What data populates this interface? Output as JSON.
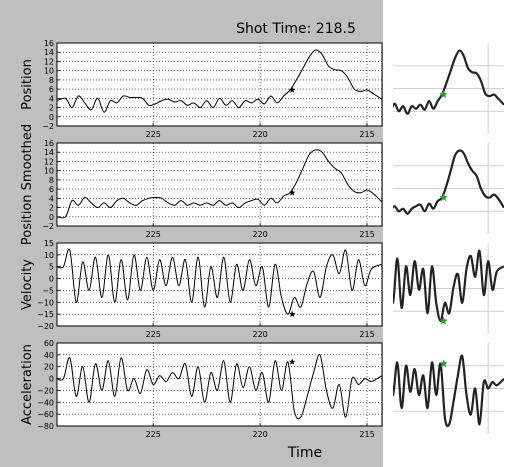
{
  "figure_title": "Shot Time: 218.5",
  "xlabel": "Time",
  "chart_data": [
    {
      "type": "line",
      "ylabel": "Position",
      "xlim": [
        229.5,
        214.3
      ],
      "ylim": [
        -2,
        16
      ],
      "yticks": [
        -2,
        0,
        2,
        4,
        6,
        8,
        10,
        12,
        14,
        16
      ],
      "xticks": [
        225,
        220,
        215
      ],
      "grid": true,
      "marker": {
        "x": 218.5,
        "y": 5.8
      },
      "x": [
        229.5,
        229.1,
        228.8,
        228.5,
        228.2,
        227.9,
        227.6,
        227.3,
        227.0,
        226.7,
        226.4,
        226.1,
        225.8,
        225.5,
        225.2,
        224.9,
        224.6,
        224.3,
        224.0,
        223.7,
        223.4,
        223.1,
        222.8,
        222.5,
        222.2,
        221.9,
        221.6,
        221.3,
        221.0,
        220.7,
        220.4,
        220.1,
        219.8,
        219.5,
        219.2,
        218.9,
        218.6,
        218.3,
        218.0,
        217.7,
        217.4,
        217.1,
        216.8,
        216.5,
        216.2,
        215.9,
        215.6,
        215.3,
        215.0,
        214.7,
        214.3
      ],
      "y": [
        3.5,
        4.0,
        2.0,
        4.5,
        3.0,
        1.5,
        4.0,
        1.0,
        3.5,
        3.0,
        4.5,
        4.2,
        4.2,
        4.0,
        2.5,
        2.8,
        3.5,
        3.8,
        3.2,
        3.5,
        2.5,
        3.0,
        2.0,
        3.5,
        2.0,
        4.0,
        2.5,
        3.5,
        2.0,
        3.5,
        3.0,
        3.8,
        2.8,
        4.5,
        3.0,
        4.5,
        5.8,
        8.0,
        10.5,
        13.0,
        14.5,
        13.5,
        11.0,
        10.2,
        10.0,
        8.5,
        6.0,
        5.5,
        5.8,
        5.0,
        3.8
      ]
    },
    {
      "type": "line",
      "ylabel": "Position Smoothed",
      "xlim": [
        229.5,
        214.3
      ],
      "ylim": [
        -2,
        16
      ],
      "yticks": [
        -2,
        0,
        2,
        4,
        6,
        8,
        10,
        12,
        14,
        16
      ],
      "xticks": [
        225,
        220,
        215
      ],
      "grid": true,
      "marker": {
        "x": 218.5,
        "y": 5.2
      },
      "x": [
        229.5,
        229.1,
        228.8,
        228.5,
        228.2,
        227.9,
        227.6,
        227.3,
        227.0,
        226.7,
        226.4,
        226.1,
        225.8,
        225.5,
        225.2,
        224.9,
        224.6,
        224.3,
        224.0,
        223.7,
        223.4,
        223.1,
        222.8,
        222.5,
        222.2,
        221.9,
        221.6,
        221.3,
        221.0,
        220.7,
        220.4,
        220.1,
        219.8,
        219.5,
        219.2,
        218.9,
        218.6,
        218.3,
        218.0,
        217.7,
        217.4,
        217.1,
        216.8,
        216.5,
        216.2,
        215.9,
        215.6,
        215.3,
        215.0,
        214.7,
        214.3
      ],
      "y": [
        0.0,
        0.0,
        3.5,
        2.5,
        4.2,
        3.0,
        2.0,
        3.0,
        2.0,
        3.5,
        4.0,
        3.0,
        2.5,
        3.5,
        4.0,
        4.2,
        4.0,
        3.0,
        2.5,
        3.5,
        2.5,
        3.0,
        2.5,
        3.0,
        2.5,
        3.5,
        2.5,
        3.0,
        2.0,
        3.0,
        3.5,
        3.8,
        2.5,
        4.0,
        3.0,
        4.5,
        5.2,
        7.5,
        10.5,
        13.5,
        14.5,
        14.0,
        12.0,
        10.5,
        9.5,
        7.0,
        5.5,
        5.2,
        5.8,
        5.0,
        3.2
      ]
    },
    {
      "type": "line",
      "ylabel": "Velocity",
      "xlim": [
        229.5,
        214.3
      ],
      "ylim": [
        -20,
        15
      ],
      "yticks": [
        -20,
        -15,
        -10,
        -5,
        0,
        5,
        10,
        15
      ],
      "xticks": [
        225,
        220,
        215
      ],
      "grid": true,
      "marker": {
        "x": 218.5,
        "y": -15
      },
      "x": [
        229.5,
        229.2,
        228.9,
        228.6,
        228.3,
        228.0,
        227.7,
        227.4,
        227.1,
        226.8,
        226.5,
        226.2,
        225.9,
        225.6,
        225.3,
        225.0,
        224.7,
        224.4,
        224.1,
        223.8,
        223.5,
        223.2,
        222.9,
        222.6,
        222.3,
        222.0,
        221.7,
        221.4,
        221.1,
        220.8,
        220.5,
        220.2,
        219.9,
        219.6,
        219.3,
        219.0,
        218.7,
        218.4,
        218.1,
        217.8,
        217.5,
        217.2,
        216.9,
        216.6,
        216.3,
        216.0,
        215.7,
        215.4,
        215.1,
        214.8,
        214.3
      ],
      "y": [
        5,
        5,
        12,
        -10,
        7,
        -5,
        9,
        -8,
        10,
        -10,
        8,
        -9,
        10,
        -5,
        9,
        -5,
        8,
        -3,
        9,
        -3,
        8,
        -10,
        9,
        -12,
        5,
        -8,
        9,
        -10,
        6,
        -5,
        8,
        -3,
        5,
        -12,
        6,
        -8,
        -15,
        -8,
        -12,
        -2,
        3,
        -8,
        5,
        10,
        2,
        12,
        -5,
        8,
        -3,
        4,
        6
      ]
    },
    {
      "type": "line",
      "ylabel": "Acceleration",
      "xlim": [
        229.5,
        214.3
      ],
      "ylim": [
        -80,
        60
      ],
      "yticks": [
        -80,
        -60,
        -40,
        -20,
        0,
        20,
        40,
        60
      ],
      "xticks": [
        225,
        220,
        215
      ],
      "grid": true,
      "marker": {
        "x": 218.5,
        "y": 28
      },
      "x": [
        229.5,
        229.2,
        228.9,
        228.6,
        228.3,
        228.0,
        227.7,
        227.4,
        227.1,
        226.8,
        226.5,
        226.2,
        225.9,
        225.6,
        225.3,
        225.0,
        224.7,
        224.4,
        224.1,
        223.8,
        223.5,
        223.2,
        222.9,
        222.6,
        222.3,
        222.0,
        221.7,
        221.4,
        221.1,
        220.8,
        220.5,
        220.2,
        219.9,
        219.6,
        219.3,
        219.0,
        218.7,
        218.4,
        218.1,
        217.8,
        217.5,
        217.2,
        216.9,
        216.6,
        216.3,
        216.0,
        215.7,
        215.4,
        215.1,
        214.8,
        214.3
      ],
      "y": [
        0,
        0,
        35,
        -30,
        20,
        -40,
        25,
        -20,
        30,
        -30,
        35,
        -20,
        0,
        -25,
        15,
        -10,
        5,
        -5,
        10,
        0,
        25,
        -30,
        20,
        -40,
        10,
        -20,
        30,
        -40,
        25,
        -15,
        20,
        -20,
        10,
        -40,
        30,
        -20,
        28,
        -55,
        -65,
        -30,
        10,
        40,
        -20,
        -50,
        -10,
        -65,
        0,
        -10,
        0,
        -5,
        5
      ]
    }
  ],
  "thumbnails": [
    {
      "marker": {
        "x": 218.5,
        "y": 5.8
      }
    },
    {
      "marker": {
        "x": 218.5,
        "y": 5.2
      }
    },
    {
      "marker": {
        "x": 218.5,
        "y": -15
      }
    },
    {
      "marker": {
        "x": 218.5,
        "y": 28
      }
    }
  ]
}
